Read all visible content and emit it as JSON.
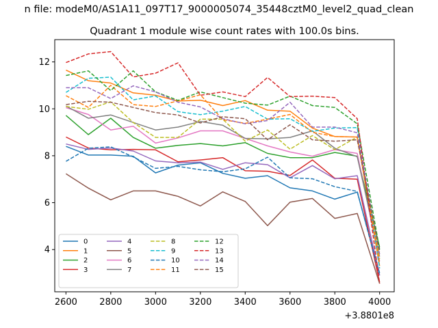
{
  "figure": {
    "suptitle": "n file: modeM0/AS1A11_097T17_9000005074_35448cztM0_level2_quad_clean",
    "title": "Quadrant 1 module wise count rates with 100.0s bins.",
    "offset_label": "+3.8801e8"
  },
  "chart_data": {
    "type": "line",
    "title": "Quadrant 1 module wise count rates with 100.0s bins.",
    "xlabel": "",
    "ylabel": "",
    "x_offset_text": "+3.8801e8",
    "xlim": [
      2550,
      4065
    ],
    "ylim": [
      2.2,
      12.95
    ],
    "xticks": [
      2600,
      2800,
      3000,
      3200,
      3400,
      3600,
      3800,
      4000
    ],
    "yticks": [
      4,
      6,
      8,
      10,
      12
    ],
    "grid": false,
    "legend_placement": "lower-left",
    "legend_ncol": 3,
    "x": [
      2600,
      2700,
      2800,
      2900,
      3000,
      3100,
      3200,
      3300,
      3400,
      3500,
      3600,
      3700,
      3800,
      3900,
      4000
    ],
    "series": [
      {
        "name": "0",
        "color": "#1f77b4",
        "dash": "solid",
        "values": [
          8.4,
          8.03,
          8.03,
          7.98,
          7.27,
          7.6,
          7.7,
          7.25,
          7.04,
          7.15,
          6.63,
          6.5,
          6.15,
          6.45,
          3.0
        ]
      },
      {
        "name": "1",
        "color": "#ff7f0e",
        "dash": "solid",
        "values": [
          11.65,
          11.2,
          11.1,
          10.68,
          10.58,
          10.33,
          10.37,
          10.14,
          10.35,
          9.94,
          9.9,
          9.18,
          8.82,
          8.8,
          3.3
        ]
      },
      {
        "name": "2",
        "color": "#2ca02c",
        "dash": "solid",
        "values": [
          9.72,
          8.9,
          9.6,
          8.78,
          8.32,
          8.44,
          8.52,
          8.42,
          8.56,
          8.1,
          7.92,
          7.92,
          8.14,
          7.98,
          4.1
        ]
      },
      {
        "name": "3",
        "color": "#d62728",
        "dash": "solid",
        "values": [
          8.8,
          8.33,
          8.25,
          8.27,
          8.25,
          7.74,
          7.82,
          7.92,
          7.36,
          7.34,
          7.16,
          7.82,
          7.04,
          7.0,
          2.6
        ]
      },
      {
        "name": "4",
        "color": "#9467bd",
        "dash": "solid",
        "values": [
          8.5,
          8.27,
          8.33,
          8.2,
          7.78,
          7.7,
          7.73,
          7.42,
          7.7,
          7.62,
          7.06,
          7.58,
          7.02,
          7.15,
          2.9
        ]
      },
      {
        "name": "5",
        "color": "#8c564b",
        "dash": "solid",
        "values": [
          7.23,
          6.62,
          6.12,
          6.5,
          6.5,
          6.27,
          5.86,
          6.46,
          6.05,
          5.02,
          6.02,
          6.18,
          5.33,
          5.54,
          2.55
        ]
      },
      {
        "name": "6",
        "color": "#e377c2",
        "dash": "solid",
        "values": [
          10.05,
          9.76,
          9.1,
          9.26,
          8.54,
          8.76,
          9.06,
          9.06,
          8.74,
          8.42,
          8.16,
          7.98,
          8.26,
          8.1,
          3.5
        ]
      },
      {
        "name": "7",
        "color": "#7f7f7f",
        "dash": "solid",
        "values": [
          10.12,
          9.6,
          9.74,
          9.42,
          9.1,
          9.22,
          9.46,
          9.3,
          8.74,
          8.72,
          8.78,
          9.06,
          8.32,
          7.96,
          3.7
        ]
      },
      {
        "name": "8",
        "color": "#bcbd22",
        "dash": "dashed",
        "values": [
          10.1,
          9.98,
          10.3,
          9.42,
          8.78,
          8.78,
          9.56,
          9.56,
          8.62,
          9.1,
          8.28,
          8.86,
          8.26,
          8.8,
          3.6
        ]
      },
      {
        "name": "9",
        "color": "#17becf",
        "dash": "dashed",
        "values": [
          10.7,
          11.3,
          11.35,
          10.38,
          10.55,
          9.88,
          9.75,
          9.9,
          10.1,
          9.56,
          9.58,
          9.04,
          9.18,
          9.2,
          3.2
        ]
      },
      {
        "name": "10",
        "color": "#1f77b4",
        "dash": "dashed",
        "values": [
          7.76,
          8.32,
          8.38,
          7.95,
          7.46,
          7.55,
          7.4,
          7.32,
          7.44,
          7.94,
          7.06,
          7.02,
          6.68,
          6.48,
          2.9
        ]
      },
      {
        "name": "11",
        "color": "#ff7f0e",
        "dash": "dashed",
        "values": [
          10.56,
          10.06,
          11.0,
          10.18,
          10.1,
          10.34,
          10.6,
          9.54,
          9.38,
          9.56,
          9.76,
          9.0,
          8.82,
          8.8,
          3.4
        ]
      },
      {
        "name": "12",
        "color": "#2ca02c",
        "dash": "dashed",
        "values": [
          11.42,
          11.62,
          10.78,
          11.62,
          10.72,
          10.36,
          10.72,
          10.48,
          10.24,
          10.16,
          10.54,
          10.14,
          10.06,
          9.36,
          4.0
        ]
      },
      {
        "name": "13",
        "color": "#d62728",
        "dash": "dashed",
        "values": [
          11.97,
          12.34,
          12.44,
          11.36,
          11.52,
          11.96,
          10.58,
          10.72,
          10.52,
          11.34,
          10.52,
          10.54,
          10.48,
          9.58,
          2.55
        ]
      },
      {
        "name": "14",
        "color": "#9467bd",
        "dash": "dashed",
        "values": [
          10.9,
          10.9,
          10.44,
          10.98,
          10.72,
          10.28,
          10.08,
          9.58,
          9.36,
          9.5,
          10.28,
          9.22,
          9.22,
          8.98,
          3.8
        ]
      },
      {
        "name": "15",
        "color": "#8c564b",
        "dash": "dashed",
        "values": [
          10.18,
          10.32,
          10.28,
          10.06,
          9.84,
          9.74,
          9.4,
          9.66,
          9.58,
          8.68,
          9.32,
          8.68,
          8.62,
          8.68,
          3.9
        ]
      }
    ]
  }
}
